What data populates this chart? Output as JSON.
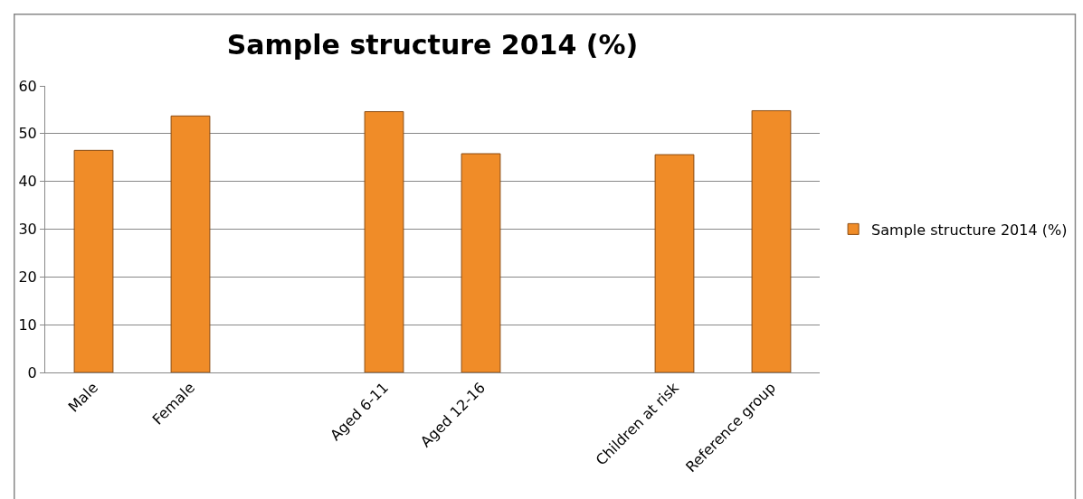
{
  "chart_data": {
    "type": "bar",
    "title": "Sample structure 2014 (%)",
    "categories": [
      "Male",
      "Female",
      null,
      "Aged 6-11",
      "Aged 12-16",
      null,
      "Children at risk",
      "Reference group"
    ],
    "series": [
      {
        "name": "Sample structure 2014 (%)",
        "color": "#f08c28",
        "values": [
          46.5,
          53.7,
          null,
          54.6,
          45.8,
          null,
          45.6,
          54.8
        ]
      }
    ],
    "ylim": [
      0,
      60
    ],
    "yticks": [
      0,
      10,
      20,
      30,
      40,
      50,
      60
    ],
    "grid": "y",
    "legend": "right"
  }
}
